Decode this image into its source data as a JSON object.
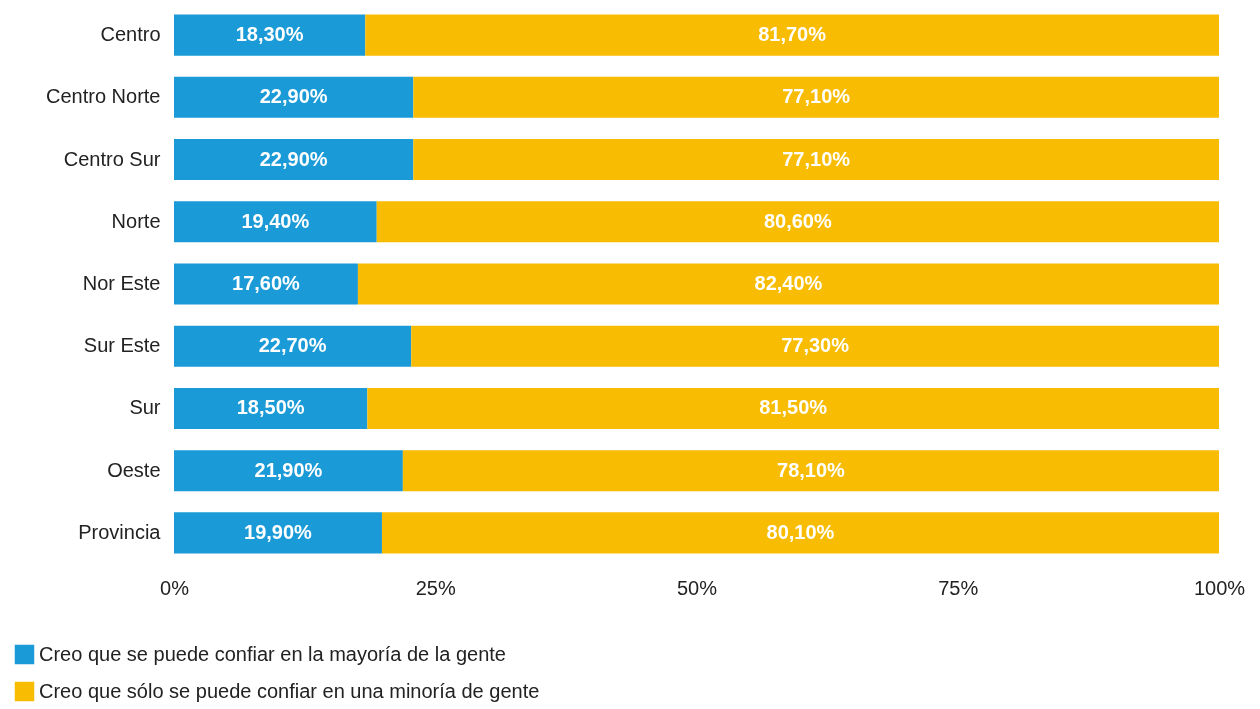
{
  "chart_data": {
    "type": "bar",
    "orientation": "horizontal",
    "stacked": true,
    "categories": [
      "Centro",
      "Centro Norte",
      "Centro Sur",
      "Norte",
      "Nor Este",
      "Sur Este",
      "Sur",
      "Oeste",
      "Provincia"
    ],
    "series": [
      {
        "name": "Creo que se puede confiar en la mayoría de la gente",
        "color": "#1a9ad6",
        "values": [
          18.3,
          22.9,
          22.9,
          19.4,
          17.6,
          22.7,
          18.5,
          21.9,
          19.9
        ],
        "value_labels": [
          "18,30%",
          "22,90%",
          "22,90%",
          "19,40%",
          "17,60%",
          "22,70%",
          "18,50%",
          "21,90%",
          "19,90%"
        ]
      },
      {
        "name": "Creo que sólo se puede confiar en una minoría de gente",
        "color": "#f8bc02",
        "values": [
          81.7,
          77.1,
          77.1,
          80.6,
          82.4,
          77.3,
          81.5,
          78.1,
          80.1
        ],
        "value_labels": [
          "81,70%",
          "77,10%",
          "77,10%",
          "80,60%",
          "82,40%",
          "77,30%",
          "81,50%",
          "78,10%",
          "80,10%"
        ]
      }
    ],
    "xlim": [
      0,
      100
    ],
    "xticks": [
      {
        "value": 0,
        "label": "0%"
      },
      {
        "value": 25,
        "label": "25%"
      },
      {
        "value": 50,
        "label": "50%"
      },
      {
        "value": 75,
        "label": "75%"
      },
      {
        "value": 100,
        "label": "100%"
      }
    ],
    "grid": false,
    "legend": "bottom left"
  }
}
